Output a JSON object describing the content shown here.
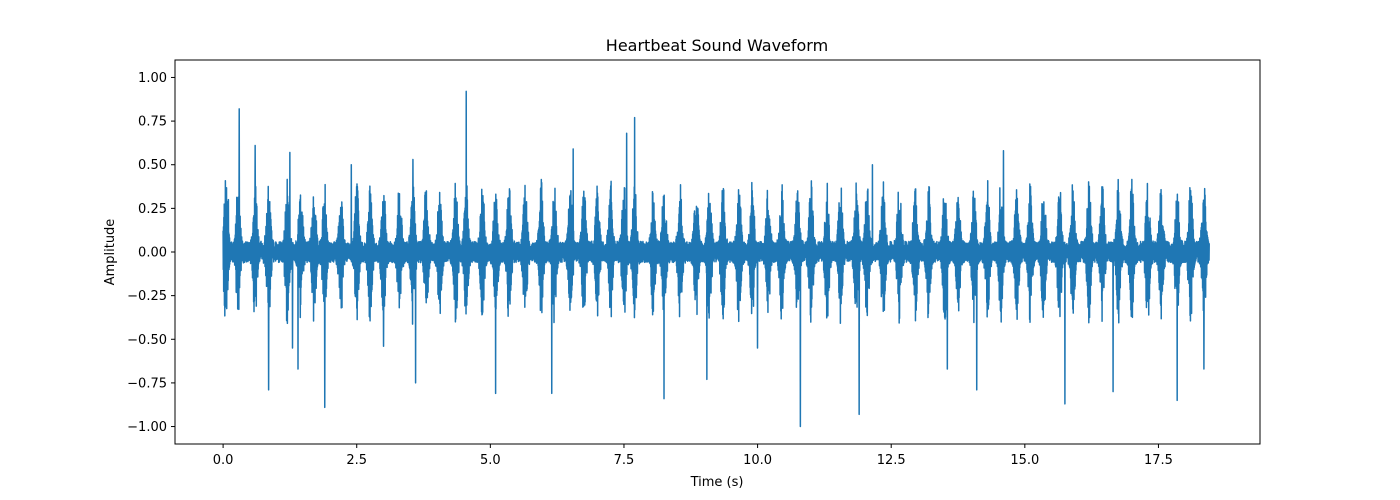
{
  "chart_data": {
    "type": "line",
    "title": "Heartbeat Sound Waveform",
    "xlabel": "Time (s)",
    "ylabel": "Amplitude",
    "xlim": [
      -0.9,
      19.4
    ],
    "ylim": [
      -1.1,
      1.1
    ],
    "xticks": [
      0.0,
      2.5,
      5.0,
      7.5,
      10.0,
      12.5,
      15.0,
      17.5
    ],
    "xtick_labels": [
      "0.0",
      "2.5",
      "5.0",
      "7.5",
      "10.0",
      "12.5",
      "15.0",
      "17.5"
    ],
    "yticks": [
      1.0,
      0.75,
      0.5,
      0.25,
      0.0,
      -0.25,
      -0.5,
      -0.75,
      -1.0
    ],
    "ytick_labels": [
      "1.00",
      "0.75",
      "0.50",
      "0.25",
      "0.00",
      "−0.25",
      "−0.50",
      "−0.75",
      "−1.00"
    ],
    "grid": false,
    "color": "#1f77b4",
    "series": [
      {
        "x_range": [
          0.0,
          18.45
        ],
        "beat_times": [
          0.05,
          0.28,
          0.6,
          0.85,
          1.2,
          1.45,
          1.7,
          1.9,
          2.2,
          2.5,
          2.75,
          3.0,
          3.3,
          3.55,
          3.8,
          4.05,
          4.35,
          4.55,
          4.85,
          5.1,
          5.35,
          5.65,
          5.95,
          6.2,
          6.5,
          6.75,
          7.0,
          7.25,
          7.5,
          7.7,
          8.05,
          8.25,
          8.55,
          8.85,
          9.1,
          9.35,
          9.65,
          9.9,
          10.2,
          10.45,
          10.75,
          11.0,
          11.3,
          11.55,
          11.85,
          12.05,
          12.35,
          12.65,
          12.95,
          13.2,
          13.5,
          13.75,
          14.05,
          14.3,
          14.55,
          14.85,
          15.1,
          15.35,
          15.65,
          15.9,
          16.2,
          16.45,
          16.75,
          17.0,
          17.3,
          17.55,
          17.85,
          18.1,
          18.35
        ],
        "spikes": [
          {
            "t": 0.1,
            "v": 0.3
          },
          {
            "t": 0.3,
            "v": 0.82
          },
          {
            "t": 0.6,
            "v": 0.61
          },
          {
            "t": 0.85,
            "v": -0.79
          },
          {
            "t": 1.25,
            "v": 0.57
          },
          {
            "t": 1.3,
            "v": -0.55
          },
          {
            "t": 1.4,
            "v": -0.67
          },
          {
            "t": 1.9,
            "v": -0.89
          },
          {
            "t": 2.4,
            "v": 0.5
          },
          {
            "t": 3.0,
            "v": -0.54
          },
          {
            "t": 3.55,
            "v": 0.53
          },
          {
            "t": 3.6,
            "v": -0.75
          },
          {
            "t": 4.55,
            "v": 0.92
          },
          {
            "t": 5.1,
            "v": -0.81
          },
          {
            "t": 6.15,
            "v": -0.81
          },
          {
            "t": 6.55,
            "v": 0.59
          },
          {
            "t": 7.55,
            "v": 0.68
          },
          {
            "t": 7.7,
            "v": 0.77
          },
          {
            "t": 8.25,
            "v": -0.84
          },
          {
            "t": 9.05,
            "v": -0.73
          },
          {
            "t": 10.0,
            "v": -0.55
          },
          {
            "t": 10.8,
            "v": -1.0
          },
          {
            "t": 11.9,
            "v": -0.93
          },
          {
            "t": 12.15,
            "v": 0.5
          },
          {
            "t": 13.55,
            "v": -0.67
          },
          {
            "t": 14.1,
            "v": -0.79
          },
          {
            "t": 14.6,
            "v": 0.58
          },
          {
            "t": 15.75,
            "v": -0.87
          },
          {
            "t": 16.65,
            "v": -0.8
          },
          {
            "t": 17.85,
            "v": -0.85
          },
          {
            "t": 18.35,
            "v": -0.67
          }
        ]
      }
    ]
  }
}
